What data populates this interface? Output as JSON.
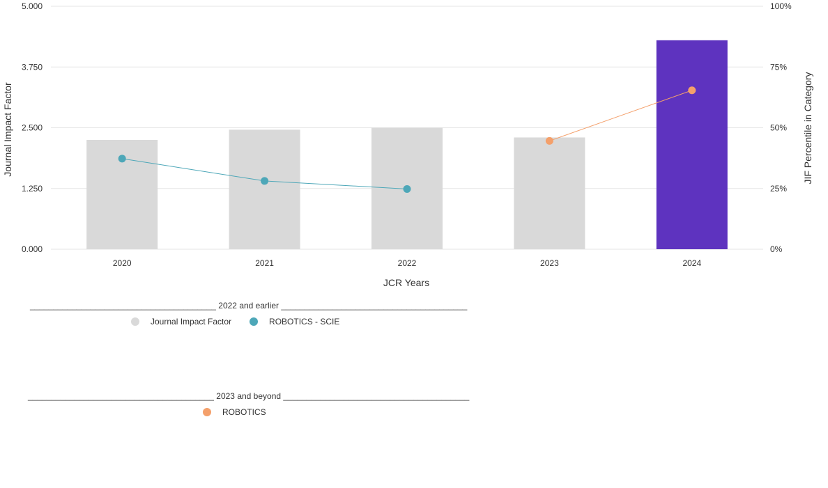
{
  "chart_data": {
    "type": "bar",
    "categories": [
      "2020",
      "2021",
      "2022",
      "2023",
      "2024"
    ],
    "xlabel": "JCR Years",
    "ylabel": "Journal Impact Factor",
    "y2label": "JIF Percentile in Category",
    "ylim": [
      0,
      5
    ],
    "y2lim": [
      0,
      100
    ],
    "y_ticks": [
      "0.000",
      "1.250",
      "2.500",
      "3.750",
      "5.000"
    ],
    "y2_ticks": [
      "0%",
      "25%",
      "50%",
      "75%",
      "100%"
    ],
    "grid": true,
    "bars": {
      "name": "Journal Impact Factor",
      "values": [
        2.25,
        2.46,
        2.5,
        2.3,
        4.3
      ],
      "colors": [
        "#d9d9d9",
        "#d9d9d9",
        "#d9d9d9",
        "#d9d9d9",
        "#5e33bf"
      ]
    },
    "series": [
      {
        "name": "ROBOTICS - SCIE",
        "axis": "right",
        "color": "#4da7b8",
        "points": [
          {
            "x": "2020",
            "y": 37.3
          },
          {
            "x": "2021",
            "y": 28.1
          },
          {
            "x": "2022",
            "y": 24.8
          }
        ]
      },
      {
        "name": "ROBOTICS",
        "axis": "right",
        "color": "#f4a06b",
        "points": [
          {
            "x": "2023",
            "y": 44.6
          },
          {
            "x": "2024",
            "y": 65.4
          }
        ]
      }
    ]
  },
  "legend": {
    "group1": {
      "heading": "________________________________________ 2022 and earlier ________________________________________",
      "items": [
        {
          "label": "Journal Impact Factor",
          "color": "#d9d9d9"
        },
        {
          "label": "ROBOTICS - SCIE",
          "color": "#4da7b8"
        }
      ]
    },
    "group2": {
      "heading": "________________________________________ 2023 and beyond ________________________________________",
      "items": [
        {
          "label": "ROBOTICS",
          "color": "#f4a06b"
        }
      ]
    }
  }
}
